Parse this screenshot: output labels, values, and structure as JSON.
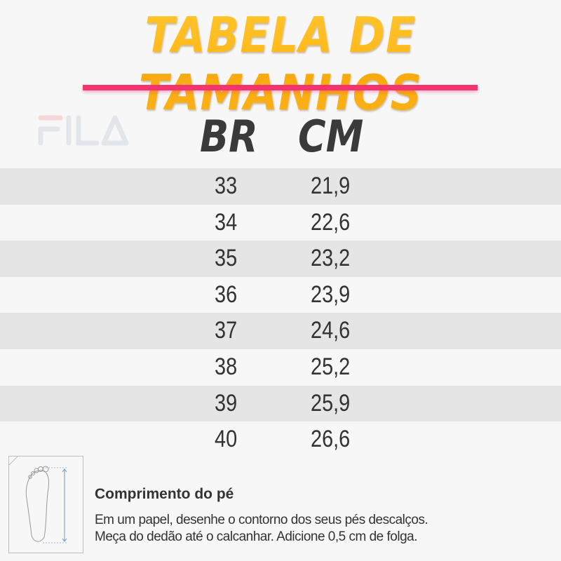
{
  "title": "TABELA DE TAMANHOS",
  "logo": "FILA",
  "columns": {
    "br": "BR",
    "cm": "CM"
  },
  "rows": [
    {
      "br": "33",
      "cm": "21,9"
    },
    {
      "br": "34",
      "cm": "22,6"
    },
    {
      "br": "35",
      "cm": "23,2"
    },
    {
      "br": "36",
      "cm": "23,9"
    },
    {
      "br": "37",
      "cm": "24,6"
    },
    {
      "br": "38",
      "cm": "25,2"
    },
    {
      "br": "39",
      "cm": "25,9"
    },
    {
      "br": "40",
      "cm": "26,6"
    }
  ],
  "instructions": {
    "icon": "foot-measure-icon",
    "title": "Comprimento do pé",
    "line1": "Em um papel, desenhe o contorno dos seus pés descalços.",
    "line2": "Meça do dedão até o calcanhar. Adicione 0,5 cm de folga."
  },
  "colors": {
    "title": "#fdb515",
    "underline": "#f4346f",
    "shaded_row": "#e5e5e5",
    "text": "#333333"
  }
}
